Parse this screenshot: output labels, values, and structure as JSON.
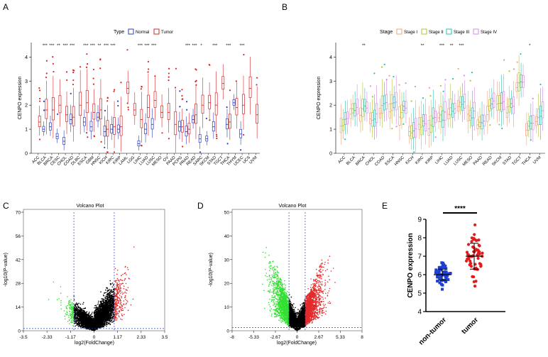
{
  "panel_labels": {
    "a": "A",
    "b": "B",
    "c": "C",
    "d": "D",
    "e": "E"
  },
  "colors": {
    "normal": "#2b3fc4",
    "tumor": "#d62728",
    "stage1": "#f2a07b",
    "stage2": "#b5c234",
    "stage3": "#27c2b3",
    "stage4": "#d68be8",
    "up": "#e32b2b",
    "down": "#33e033",
    "ns": "#000000",
    "guide": "#2b3fc4",
    "nontumor_dot": "#1f3fd1",
    "tumor_dot": "#e21b1b"
  },
  "chart_data": [
    {
      "id": "A",
      "type": "box",
      "legend_title": "Type",
      "legend": [
        "Normal",
        "Tumor"
      ],
      "ylabel": "CENPO expression",
      "ylim": [
        0,
        4.6
      ],
      "yticks": [
        0,
        1,
        2,
        3,
        4
      ],
      "categories": [
        "ACC",
        "BLCA",
        "BRCA",
        "CESC",
        "CHOL",
        "COAD",
        "DLBC",
        "ESCA",
        "GBM",
        "HNSC",
        "KICH",
        "KIRC",
        "KIRP",
        "LAML",
        "LGG",
        "LIHC",
        "LUAD",
        "LUSC",
        "MESO",
        "OV",
        "PAAD",
        "PCPG",
        "PRAD",
        "READ",
        "SARC",
        "SKCM",
        "STAD",
        "TGCT",
        "THCA",
        "THYM",
        "UCEC",
        "UCS",
        "UVM"
      ],
      "signif": {
        "BLCA": "***",
        "BRCA": "***",
        "CESC": "**",
        "CHOL": "***",
        "COAD": "***",
        "ESCA": "***",
        "GBM": "***",
        "HNSC": "**",
        "KICH": "***",
        "KIRC": "***",
        "LIHC": "***",
        "LUAD": "***",
        "LUSC": "***",
        "PRAD": "***",
        "READ": "***",
        "SARC": "*",
        "STAD": "***",
        "THCA": "***",
        "UCEC": "***"
      },
      "normal_median": {
        "BLCA": 1.0,
        "BRCA": 1.1,
        "CESC": 0.7,
        "CHOL": 0.5,
        "COAD": 1.4,
        "ESCA": 1.3,
        "GBM": 1.1,
        "HNSC": 1.5,
        "KICH": 0.9,
        "KIRC": 1.0,
        "KIRP": 1.0,
        "LIHC": 0.4,
        "LUAD": 1.0,
        "LUSC": 1.2,
        "PCPG": 1.1,
        "PRAD": 0.9,
        "READ": 1.4,
        "SARC": 0.6,
        "SKCM": 0.6,
        "STAD": 1.1,
        "THCA": 1.2,
        "THYM": 2.1,
        "UCEC": 0.8
      },
      "tumor_median": {
        "ACC": 1.3,
        "BLCA": 1.8,
        "BRCA": 1.8,
        "CESC": 2.0,
        "CHOL": 1.6,
        "COAD": 1.5,
        "DLBC": 2.0,
        "ESCA": 2.1,
        "GBM": 1.7,
        "HNSC": 1.8,
        "KICH": 1.0,
        "KIRC": 1.1,
        "KIRP": 1.1,
        "LAML": 2.7,
        "LGG": 1.8,
        "LIHC": 1.4,
        "LUAD": 1.9,
        "LUSC": 2.2,
        "MESO": 1.7,
        "OV": 1.7,
        "PAAD": 1.2,
        "PCPG": 1.1,
        "PRAD": 1.0,
        "READ": 1.6,
        "SARC": 2.0,
        "SKCM": 2.1,
        "STAD": 2.0,
        "TGCT": 2.9,
        "THCA": 1.3,
        "THYM": 1.9,
        "UCEC": 2.0,
        "UCS": 2.7,
        "UVM": 1.6
      }
    },
    {
      "id": "B",
      "type": "box",
      "legend_title": "Stage",
      "legend": [
        "Stage I",
        "Stage II",
        "Stage III",
        "Stage IV"
      ],
      "ylabel": "CENPO expression",
      "ylim": [
        0,
        4.6
      ],
      "yticks": [
        0,
        1,
        2,
        3,
        4
      ],
      "categories": [
        "ACC",
        "BLCA",
        "BRCA",
        "CHOL",
        "COAD",
        "ESCA",
        "HNSC",
        "KICH",
        "KIRC",
        "KIRP",
        "LIHC",
        "LUAD",
        "LUSC",
        "MESO",
        "PAAD",
        "READ",
        "SKCM",
        "STAD",
        "TGCT",
        "THCA",
        "UVM"
      ],
      "signif": {
        "BRCA": "**",
        "KIRC": "**",
        "LIHC": "***",
        "LUAD": "**",
        "LUSC": "***",
        "THCA": "*"
      },
      "median": {
        "ACC": 1.3,
        "BLCA": 1.8,
        "BRCA": 1.8,
        "CHOL": 1.5,
        "COAD": 1.9,
        "ESCA": 2.0,
        "HNSC": 1.8,
        "KICH": 0.9,
        "KIRC": 1.2,
        "KIRP": 1.3,
        "LIHC": 1.5,
        "LUAD": 1.8,
        "LUSC": 2.1,
        "MESO": 1.6,
        "PAAD": 1.2,
        "READ": 1.9,
        "SKCM": 2.0,
        "STAD": 1.9,
        "TGCT": 2.8,
        "THCA": 1.1,
        "UVM": 1.6
      }
    },
    {
      "id": "C",
      "type": "scatter",
      "title": "Volcano Plot",
      "xlabel": "log2(FoldChange)",
      "ylabel": "-log10(P-value)",
      "xlim": [
        -3.5,
        3.5
      ],
      "ylim": [
        0,
        70
      ],
      "xticks": [
        "-3.5",
        "-2.33",
        "-1.17",
        "0",
        "1.17",
        "2.33",
        "3.5"
      ],
      "yticks": [
        "0",
        "14",
        "28",
        "42",
        "56",
        "70"
      ],
      "fc_cutoff": [
        -1,
        1
      ],
      "p_cutoff": 1.3
    },
    {
      "id": "D",
      "type": "scatter",
      "title": "Volcano Plot",
      "xlabel": "log2(FoldChange)",
      "ylabel": "-log10(P-value)",
      "xlim": [
        -8,
        8
      ],
      "ylim": [
        0,
        50
      ],
      "xticks": [
        "-8",
        "-5.33",
        "-2.67",
        "0",
        "2.67",
        "5.33",
        "8"
      ],
      "yticks": [
        "0",
        "10",
        "20",
        "30",
        "40",
        "50"
      ],
      "fc_cutoff": [
        -1,
        1
      ],
      "p_cutoff": 1.3
    },
    {
      "id": "E",
      "type": "scatter",
      "ylabel": "CENPO expression",
      "ylim": [
        4,
        9
      ],
      "yticks": [
        "4",
        "5",
        "6",
        "7",
        "8",
        "9"
      ],
      "categories": [
        "non-tumor",
        "tumor"
      ],
      "means": [
        6.0,
        7.0
      ],
      "sd": [
        0.3,
        0.7
      ],
      "significance": "****"
    }
  ]
}
